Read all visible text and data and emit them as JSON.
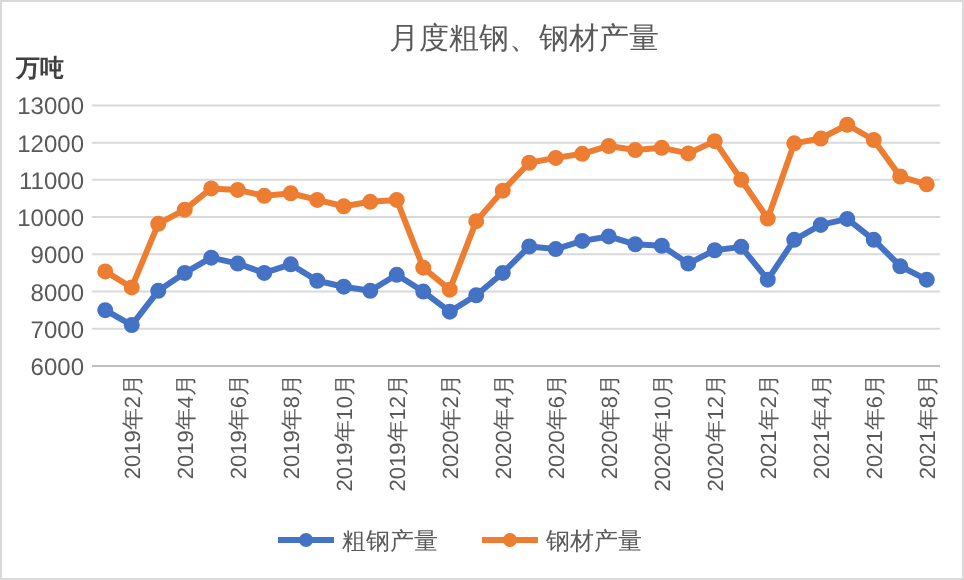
{
  "chart_data": {
    "type": "line",
    "title": "月度粗钢、钢材产量",
    "ylabel": "万吨",
    "categories": [
      null,
      "2019年2月",
      null,
      "2019年4月",
      null,
      "2019年6月",
      null,
      "2019年8月",
      null,
      "2019年10月",
      null,
      "2019年12月",
      null,
      "2020年2月",
      null,
      "2020年4月",
      null,
      "2020年6月",
      null,
      "2020年8月",
      null,
      "2020年10月",
      null,
      "2020年12月",
      null,
      "2021年2月",
      null,
      "2021年4月",
      null,
      "2021年6月",
      null,
      "2021年8月"
    ],
    "series": [
      {
        "name": "粗钢产量",
        "color": "#4472c4",
        "values": [
          7500,
          7100,
          8020,
          8500,
          8910,
          8750,
          8500,
          8730,
          8290,
          8130,
          8020,
          8450,
          8000,
          7460,
          7900,
          8500,
          9210,
          9140,
          9360,
          9480,
          9270,
          9230,
          8750,
          9110,
          9200,
          8320,
          9390,
          9790,
          9950,
          9390,
          8680,
          8320
        ]
      },
      {
        "name": "钢材产量",
        "color": "#ed7d31",
        "values": [
          8540,
          8110,
          9820,
          10200,
          10770,
          10730,
          10570,
          10640,
          10460,
          10290,
          10410,
          10460,
          8640,
          8050,
          9890,
          10710,
          11460,
          11590,
          11700,
          11910,
          11800,
          11860,
          11710,
          12040,
          11000,
          9960,
          11980,
          12110,
          12480,
          12070,
          11090,
          10880
        ]
      }
    ],
    "ylim": [
      6000,
      13000
    ],
    "yticks": [
      6000,
      7000,
      8000,
      9000,
      10000,
      11000,
      12000,
      13000
    ],
    "grid": "y",
    "legend": "bottom",
    "marker": "circle"
  }
}
